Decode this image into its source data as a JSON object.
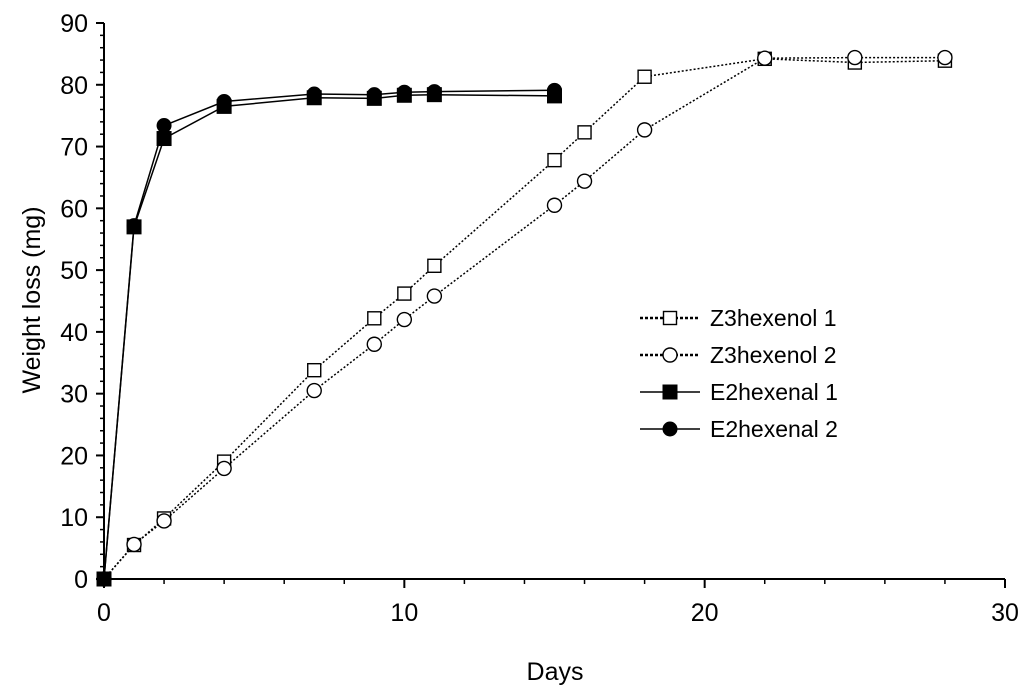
{
  "chart_data": {
    "type": "line",
    "xlabel": "Days",
    "ylabel": "Weight loss (mg)",
    "xlim": [
      0,
      30
    ],
    "ylim": [
      0,
      90
    ],
    "x_ticks": [
      0,
      10,
      20,
      30
    ],
    "y_ticks": [
      0,
      10,
      20,
      30,
      40,
      50,
      60,
      70,
      80,
      90
    ],
    "x_tick_labels": [
      "0",
      "10",
      "20",
      "30"
    ],
    "y_tick_labels": [
      "0",
      "10",
      "20",
      "30",
      "40",
      "50",
      "60",
      "70",
      "80",
      "90"
    ],
    "grid": false,
    "legend_position": "right-middle",
    "series": [
      {
        "name": "Z3hexenol 1",
        "line_style": "dotted",
        "marker": "open-square",
        "color": "#000000",
        "x": [
          0,
          1,
          2,
          4,
          7,
          9,
          10,
          11,
          15,
          16,
          18,
          22,
          25,
          28
        ],
        "y": [
          0,
          5.5,
          9.8,
          19,
          33.8,
          42.2,
          46.2,
          50.7,
          67.8,
          72.3,
          81.3,
          84.2,
          83.6,
          83.9
        ]
      },
      {
        "name": "Z3hexenol 2",
        "line_style": "dotted",
        "marker": "open-circle",
        "color": "#000000",
        "x": [
          0,
          1,
          2,
          4,
          7,
          9,
          10,
          11,
          15,
          16,
          18,
          22,
          25,
          28
        ],
        "y": [
          0,
          5.6,
          9.4,
          17.9,
          30.5,
          38,
          42,
          45.8,
          60.5,
          64.4,
          72.7,
          84.3,
          84.4,
          84.4
        ]
      },
      {
        "name": "E2hexenal 1",
        "line_style": "solid",
        "marker": "filled-square",
        "color": "#000000",
        "x": [
          0,
          1,
          2,
          4,
          7,
          9,
          10,
          11,
          15
        ],
        "y": [
          0,
          57,
          71.3,
          76.5,
          77.9,
          77.8,
          78.3,
          78.4,
          78.2
        ]
      },
      {
        "name": "E2hexenal 2",
        "line_style": "solid",
        "marker": "filled-circle",
        "color": "#000000",
        "x": [
          0,
          1,
          2,
          4,
          7,
          9,
          10,
          11,
          15
        ],
        "y": [
          0,
          57.2,
          73.4,
          77.3,
          78.5,
          78.4,
          78.8,
          78.9,
          79.1
        ]
      }
    ]
  }
}
